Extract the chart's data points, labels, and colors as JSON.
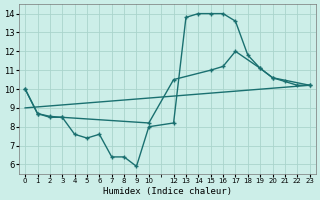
{
  "xlabel": "Humidex (Indice chaleur)",
  "background_color": "#cceee8",
  "grid_color": "#aad4cc",
  "line_color": "#1a7070",
  "xlim": [
    -0.5,
    23.5
  ],
  "ylim": [
    5.5,
    14.5
  ],
  "xtick_positions": [
    0,
    1,
    2,
    3,
    4,
    5,
    6,
    7,
    8,
    9,
    10,
    12,
    13,
    14,
    15,
    16,
    17,
    18,
    19,
    20,
    21,
    22,
    23
  ],
  "xtick_labels": [
    "0",
    "1",
    "2",
    "3",
    "4",
    "5",
    "6",
    "7",
    "8",
    "9",
    "10",
    "12",
    "13",
    "14",
    "15",
    "16",
    "17",
    "18",
    "19",
    "20",
    "21",
    "22",
    "23"
  ],
  "yticks": [
    6,
    7,
    8,
    9,
    10,
    11,
    12,
    13,
    14
  ],
  "line1_x": [
    0,
    1,
    2,
    3,
    4,
    5,
    6,
    7,
    8,
    9,
    10,
    12,
    13,
    14,
    15,
    16,
    17,
    18,
    19,
    20,
    21,
    22,
    23
  ],
  "line1_y": [
    10.0,
    8.7,
    8.5,
    8.5,
    7.6,
    7.4,
    7.6,
    6.4,
    6.4,
    5.9,
    8.0,
    8.2,
    13.8,
    14.0,
    14.0,
    14.0,
    13.6,
    11.8,
    11.1,
    10.6,
    10.4,
    10.2,
    10.2
  ],
  "line2_x": [
    0,
    1,
    2,
    3,
    10,
    12,
    15,
    16,
    17,
    19,
    20,
    23
  ],
  "line2_y": [
    10.0,
    8.7,
    8.55,
    8.5,
    8.2,
    10.5,
    11.0,
    11.2,
    12.0,
    11.1,
    10.6,
    10.2
  ],
  "line3_x": [
    0,
    23
  ],
  "line3_y": [
    9.0,
    10.2
  ]
}
